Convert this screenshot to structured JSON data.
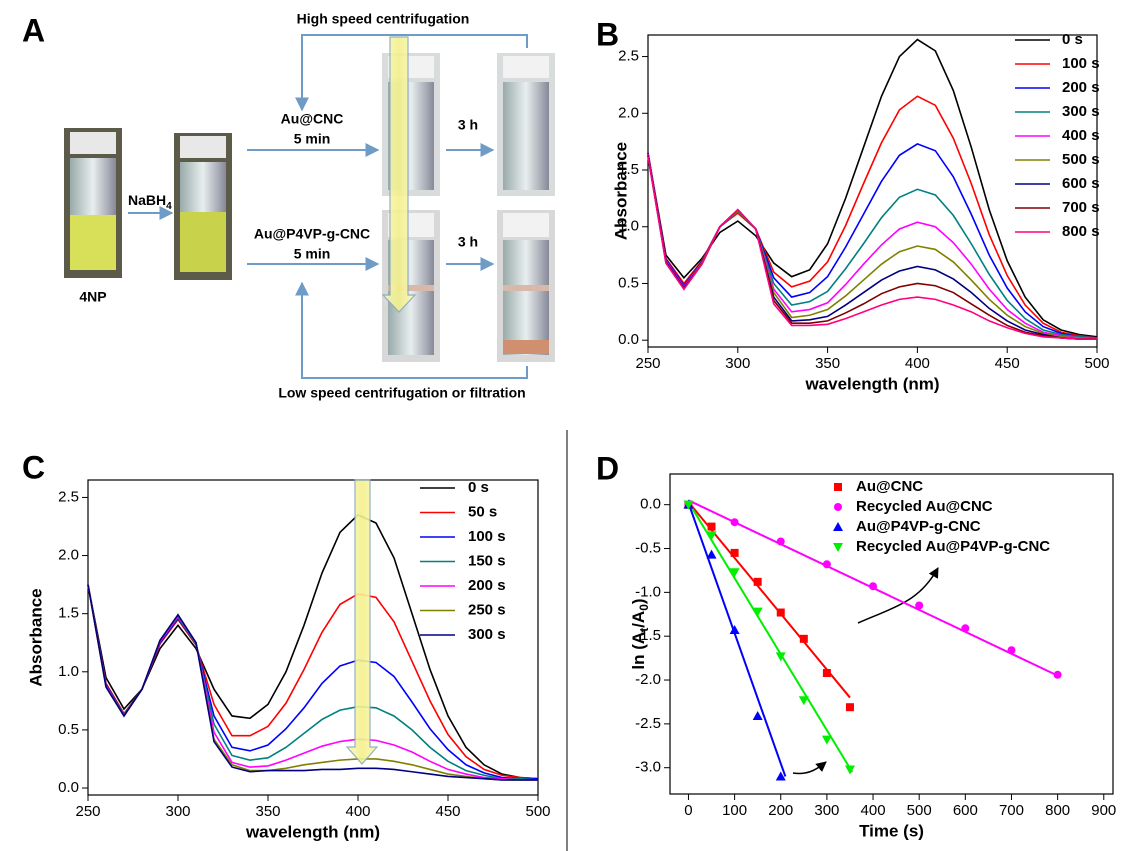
{
  "scheme": {
    "panel": "A",
    "top_label": "High speed centrifugation",
    "catalyst_1": "Au@CNC",
    "time_1": "5 min",
    "wait_1": "3 h",
    "reagent": "NaBH",
    "reagent_sub": "4",
    "catalyst_2": "Au@P4VP-g-CNC",
    "time_2": "5 min",
    "wait_2": "3 h",
    "sample": "4NP",
    "bottom_label": "Low speed centrifugation or filtration"
  },
  "chart_data": [
    {
      "type": "line",
      "panel": "B",
      "x_label": "wavelength (nm)",
      "y_label": "Absorbance",
      "x": [
        250,
        260,
        270,
        280,
        290,
        300,
        310,
        320,
        330,
        340,
        350,
        360,
        370,
        380,
        390,
        400,
        410,
        420,
        430,
        440,
        450,
        460,
        470,
        480,
        490,
        500
      ],
      "xlim": [
        250,
        500
      ],
      "xticks": [
        250,
        300,
        350,
        400,
        450,
        500
      ],
      "ylim": [
        -0.06,
        2.69
      ],
      "yticks": [
        {
          "value": 0,
          "label": "0.0"
        },
        0.5,
        {
          "value": 1,
          "label": "1.0"
        },
        1.5,
        {
          "value": 2,
          "label": "2.0"
        },
        2.5
      ],
      "series": [
        {
          "name": "0 s",
          "color": "#000000",
          "values": [
            1.65,
            0.75,
            0.55,
            0.72,
            0.95,
            1.05,
            0.92,
            0.68,
            0.56,
            0.62,
            0.85,
            1.25,
            1.7,
            2.15,
            2.5,
            2.65,
            2.55,
            2.2,
            1.7,
            1.15,
            0.7,
            0.38,
            0.18,
            0.09,
            0.05,
            0.03
          ]
        },
        {
          "name": "100 s",
          "color": "#ff0000",
          "values": [
            1.65,
            0.72,
            0.5,
            0.7,
            1.0,
            1.12,
            0.98,
            0.6,
            0.47,
            0.52,
            0.69,
            1.01,
            1.38,
            1.74,
            2.03,
            2.15,
            2.07,
            1.78,
            1.38,
            0.93,
            0.57,
            0.31,
            0.15,
            0.07,
            0.04,
            0.02
          ]
        },
        {
          "name": "200 s",
          "color": "#0000ff",
          "values": [
            1.65,
            0.71,
            0.48,
            0.69,
            1.0,
            1.13,
            0.98,
            0.55,
            0.38,
            0.42,
            0.56,
            0.82,
            1.11,
            1.4,
            1.63,
            1.73,
            1.67,
            1.44,
            1.11,
            0.75,
            0.46,
            0.25,
            0.12,
            0.06,
            0.03,
            0.02
          ]
        },
        {
          "name": "300 s",
          "color": "#008080",
          "values": [
            1.64,
            0.7,
            0.47,
            0.68,
            1.0,
            1.13,
            0.98,
            0.5,
            0.31,
            0.34,
            0.43,
            0.63,
            0.85,
            1.08,
            1.26,
            1.33,
            1.28,
            1.1,
            0.85,
            0.58,
            0.35,
            0.19,
            0.09,
            0.05,
            0.03,
            0.02
          ]
        },
        {
          "name": "400 s",
          "color": "#ff00ff",
          "values": [
            1.64,
            0.7,
            0.47,
            0.68,
            1.0,
            1.14,
            0.98,
            0.45,
            0.25,
            0.27,
            0.33,
            0.49,
            0.67,
            0.84,
            0.98,
            1.04,
            1.0,
            0.86,
            0.67,
            0.45,
            0.27,
            0.15,
            0.07,
            0.04,
            0.02,
            0.01
          ]
        },
        {
          "name": "500 s",
          "color": "#808000",
          "values": [
            1.63,
            0.69,
            0.46,
            0.68,
            1.0,
            1.14,
            0.98,
            0.42,
            0.2,
            0.22,
            0.27,
            0.39,
            0.53,
            0.67,
            0.78,
            0.83,
            0.8,
            0.69,
            0.53,
            0.36,
            0.22,
            0.12,
            0.06,
            0.03,
            0.02,
            0.01
          ]
        },
        {
          "name": "600 s",
          "color": "#000080",
          "values": [
            1.63,
            0.69,
            0.46,
            0.67,
            1.0,
            1.15,
            0.98,
            0.38,
            0.17,
            0.18,
            0.21,
            0.31,
            0.42,
            0.53,
            0.61,
            0.65,
            0.62,
            0.54,
            0.42,
            0.28,
            0.17,
            0.09,
            0.05,
            0.02,
            0.01,
            0.01
          ]
        },
        {
          "name": "700 s",
          "color": "#800000",
          "values": [
            1.62,
            0.68,
            0.45,
            0.67,
            1.0,
            1.15,
            0.98,
            0.35,
            0.15,
            0.15,
            0.17,
            0.24,
            0.32,
            0.41,
            0.47,
            0.5,
            0.48,
            0.42,
            0.32,
            0.22,
            0.13,
            0.07,
            0.04,
            0.02,
            0.01,
            0.01
          ]
        },
        {
          "name": "800 s",
          "color": "#ff0080",
          "values": [
            1.62,
            0.68,
            0.45,
            0.67,
            1.0,
            1.15,
            0.98,
            0.32,
            0.13,
            0.13,
            0.14,
            0.19,
            0.25,
            0.31,
            0.36,
            0.38,
            0.36,
            0.31,
            0.25,
            0.17,
            0.11,
            0.06,
            0.03,
            0.02,
            0.01,
            0.01
          ]
        }
      ]
    },
    {
      "type": "line",
      "panel": "C",
      "x_label": "wavelength (nm)",
      "y_label": "Absorbance",
      "x": [
        250,
        260,
        270,
        280,
        290,
        300,
        310,
        320,
        330,
        340,
        350,
        360,
        370,
        380,
        390,
        400,
        410,
        420,
        430,
        440,
        450,
        460,
        470,
        480,
        490,
        500
      ],
      "xlim": [
        250,
        500
      ],
      "xticks": [
        250,
        300,
        350,
        400,
        450,
        500
      ],
      "ylim": [
        -0.06,
        2.65
      ],
      "yticks": [
        {
          "value": 0,
          "label": "0.0"
        },
        0.5,
        {
          "value": 1,
          "label": "1.0"
        },
        1.5,
        {
          "value": 2,
          "label": "2.0"
        },
        2.5
      ],
      "series": [
        {
          "name": "0 s",
          "color": "#000000",
          "values": [
            1.75,
            0.95,
            0.68,
            0.85,
            1.2,
            1.4,
            1.2,
            0.85,
            0.62,
            0.6,
            0.72,
            1.0,
            1.4,
            1.85,
            2.2,
            2.35,
            2.28,
            1.98,
            1.5,
            1.02,
            0.62,
            0.35,
            0.2,
            0.12,
            0.09,
            0.08
          ]
        },
        {
          "name": "50 s",
          "color": "#ff0000",
          "values": [
            1.75,
            0.9,
            0.64,
            0.85,
            1.24,
            1.45,
            1.23,
            0.72,
            0.45,
            0.45,
            0.53,
            0.73,
            1.02,
            1.34,
            1.58,
            1.67,
            1.64,
            1.43,
            1.09,
            0.75,
            0.46,
            0.27,
            0.16,
            0.11,
            0.09,
            0.08
          ]
        },
        {
          "name": "100 s",
          "color": "#0000ff",
          "values": [
            1.75,
            0.89,
            0.63,
            0.85,
            1.25,
            1.46,
            1.24,
            0.62,
            0.35,
            0.32,
            0.37,
            0.51,
            0.69,
            0.9,
            1.05,
            1.1,
            1.08,
            0.96,
            0.74,
            0.51,
            0.33,
            0.2,
            0.13,
            0.09,
            0.08,
            0.08
          ]
        },
        {
          "name": "150 s",
          "color": "#008080",
          "values": [
            1.75,
            0.88,
            0.63,
            0.85,
            1.26,
            1.47,
            1.24,
            0.55,
            0.28,
            0.24,
            0.26,
            0.35,
            0.47,
            0.59,
            0.67,
            0.7,
            0.69,
            0.62,
            0.5,
            0.35,
            0.23,
            0.15,
            0.11,
            0.08,
            0.08,
            0.07
          ]
        },
        {
          "name": "200 s",
          "color": "#ff00ff",
          "values": [
            1.75,
            0.88,
            0.62,
            0.85,
            1.26,
            1.48,
            1.25,
            0.48,
            0.22,
            0.18,
            0.19,
            0.24,
            0.3,
            0.36,
            0.4,
            0.42,
            0.41,
            0.37,
            0.31,
            0.23,
            0.16,
            0.12,
            0.09,
            0.08,
            0.07,
            0.07
          ]
        },
        {
          "name": "250 s",
          "color": "#808000",
          "values": [
            1.75,
            0.87,
            0.62,
            0.85,
            1.27,
            1.49,
            1.25,
            0.42,
            0.2,
            0.15,
            0.15,
            0.17,
            0.2,
            0.22,
            0.24,
            0.25,
            0.25,
            0.23,
            0.2,
            0.16,
            0.12,
            0.1,
            0.08,
            0.07,
            0.07,
            0.07
          ]
        },
        {
          "name": "300 s",
          "color": "#000080",
          "values": [
            1.75,
            0.87,
            0.62,
            0.85,
            1.27,
            1.49,
            1.25,
            0.4,
            0.18,
            0.14,
            0.15,
            0.15,
            0.15,
            0.16,
            0.16,
            0.17,
            0.17,
            0.16,
            0.14,
            0.12,
            0.1,
            0.09,
            0.08,
            0.07,
            0.07,
            0.07
          ]
        }
      ]
    },
    {
      "type": "scatter",
      "panel": "D",
      "x_label": "Time (s)",
      "y_label": [
        "ln (A",
        "t",
        "/A",
        "0",
        ")"
      ],
      "xlim": [
        -40,
        920
      ],
      "xticks": [
        0,
        100,
        200,
        300,
        400,
        500,
        600,
        700,
        800,
        900
      ],
      "ylim": [
        -3.3,
        0.35
      ],
      "yticks": [
        {
          "value": 0,
          "label": "0.0"
        },
        -0.5,
        {
          "value": -1,
          "label": "-1.0"
        },
        -1.5,
        {
          "value": -2,
          "label": "-2.0"
        },
        -2.5,
        {
          "value": -3,
          "label": "-3.0"
        }
      ],
      "series": [
        {
          "name": "Au@CNC",
          "color": "#ff0000",
          "marker": "square",
          "x": [
            0,
            50,
            100,
            150,
            200,
            250,
            300,
            350
          ],
          "values": [
            0,
            -0.25,
            -0.55,
            -0.88,
            -1.23,
            -1.53,
            -1.92,
            -2.31
          ],
          "fit_x": [
            0,
            350
          ],
          "fit_y": [
            0.03,
            -2.2
          ]
        },
        {
          "name": "Recycled Au@CNC",
          "color": "#ff00ff",
          "marker": "circle",
          "x": [
            0,
            100,
            200,
            300,
            400,
            500,
            600,
            700,
            800
          ],
          "values": [
            0,
            -0.2,
            -0.42,
            -0.68,
            -0.93,
            -1.15,
            -1.41,
            -1.66,
            -1.94
          ],
          "fit_x": [
            0,
            800
          ],
          "fit_y": [
            0.05,
            -1.95
          ]
        },
        {
          "name": "Au@P4VP-g-CNC",
          "color": "#0000ff",
          "marker": "triangle-up",
          "x": [
            0,
            50,
            100,
            150,
            200
          ],
          "values": [
            0,
            -0.57,
            -1.43,
            -2.41,
            -3.1
          ],
          "fit_x": [
            0,
            210
          ],
          "fit_y": [
            0.02,
            -3.1
          ]
        },
        {
          "name": "Recycled Au@P4VP-g-CNC",
          "color": "#00ee00",
          "marker": "triangle-down",
          "x": [
            0,
            50,
            100,
            150,
            200,
            250,
            300,
            350
          ],
          "values": [
            0,
            -0.35,
            -0.77,
            -1.22,
            -1.73,
            -2.23,
            -2.68,
            -3.02
          ],
          "fit_x": [
            0,
            355
          ],
          "fit_y": [
            0.03,
            -3.05
          ]
        }
      ]
    }
  ]
}
